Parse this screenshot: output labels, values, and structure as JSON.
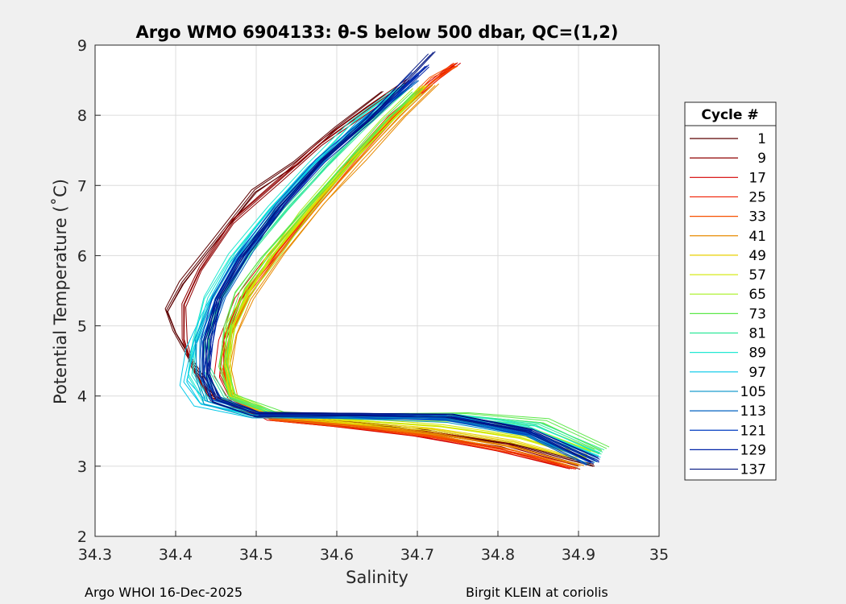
{
  "chart_data": {
    "type": "line",
    "title": "Argo WMO 6904133: θ-S below 500 dbar,  QC=(1,2)",
    "xlabel": "Salinity",
    "ylabel": "Potential Temperature (˚C)",
    "xlim": [
      34.3,
      35.0
    ],
    "ylim": [
      2,
      9
    ],
    "xticks": [
      "34.3",
      "34.4",
      "34.5",
      "34.6",
      "34.7",
      "34.8",
      "34.9",
      "35"
    ],
    "yticks": [
      "2",
      "3",
      "4",
      "5",
      "6",
      "7",
      "8",
      "9"
    ],
    "grid": true,
    "legend": {
      "title": "Cycle #",
      "position": "right",
      "entries": [
        {
          "label": "1",
          "color": "#5c0000"
        },
        {
          "label": "9",
          "color": "#8f0000"
        },
        {
          "label": "17",
          "color": "#d40000"
        },
        {
          "label": "25",
          "color": "#f01e00"
        },
        {
          "label": "33",
          "color": "#f75000"
        },
        {
          "label": "41",
          "color": "#e88a00"
        },
        {
          "label": "49",
          "color": "#e8d000"
        },
        {
          "label": "57",
          "color": "#d2e800"
        },
        {
          "label": "65",
          "color": "#a8f020"
        },
        {
          "label": "73",
          "color": "#5de84a"
        },
        {
          "label": "81",
          "color": "#2ee89a"
        },
        {
          "label": "89",
          "color": "#22e8d2"
        },
        {
          "label": "97",
          "color": "#00c8e8"
        },
        {
          "label": "105",
          "color": "#0091c8"
        },
        {
          "label": "113",
          "color": "#0060c0"
        },
        {
          "label": "121",
          "color": "#003cc0"
        },
        {
          "label": "129",
          "color": "#0022a8"
        },
        {
          "label": "137",
          "color": "#001480"
        }
      ]
    },
    "series": [
      {
        "name": "1",
        "color": "#5c0000",
        "points": [
          [
            34.92,
            3.0
          ],
          [
            34.82,
            3.3
          ],
          [
            34.7,
            3.5
          ],
          [
            34.6,
            3.62
          ],
          [
            34.5,
            3.72
          ],
          [
            34.45,
            3.95
          ],
          [
            34.42,
            4.5
          ],
          [
            34.4,
            4.9
          ],
          [
            34.39,
            5.2
          ],
          [
            34.41,
            5.6
          ],
          [
            34.45,
            6.2
          ],
          [
            34.5,
            6.9
          ],
          [
            34.55,
            7.3
          ],
          [
            34.6,
            7.8
          ],
          [
            34.66,
            8.3
          ]
        ]
      },
      {
        "name": "9",
        "color": "#8f0000",
        "points": [
          [
            34.9,
            3.0
          ],
          [
            34.8,
            3.32
          ],
          [
            34.68,
            3.52
          ],
          [
            34.58,
            3.63
          ],
          [
            34.5,
            3.72
          ],
          [
            34.44,
            4.0
          ],
          [
            34.42,
            4.4
          ],
          [
            34.41,
            4.8
          ],
          [
            34.41,
            5.3
          ],
          [
            34.43,
            5.8
          ],
          [
            34.47,
            6.5
          ],
          [
            34.53,
            7.1
          ],
          [
            34.58,
            7.6
          ],
          [
            34.64,
            8.1
          ],
          [
            34.69,
            8.5
          ]
        ]
      },
      {
        "name": "17",
        "color": "#d40000",
        "points": [
          [
            34.89,
            2.98
          ],
          [
            34.8,
            3.25
          ],
          [
            34.7,
            3.45
          ],
          [
            34.6,
            3.58
          ],
          [
            34.52,
            3.68
          ],
          [
            34.47,
            3.95
          ],
          [
            34.455,
            4.3
          ],
          [
            34.46,
            4.8
          ],
          [
            34.48,
            5.4
          ],
          [
            34.52,
            6.0
          ],
          [
            34.57,
            6.7
          ],
          [
            34.62,
            7.4
          ],
          [
            34.67,
            8.0
          ],
          [
            34.72,
            8.5
          ],
          [
            34.75,
            8.75
          ]
        ]
      },
      {
        "name": "25",
        "color": "#f01e00",
        "points": [
          [
            34.895,
            2.98
          ],
          [
            34.82,
            3.22
          ],
          [
            34.72,
            3.44
          ],
          [
            34.62,
            3.58
          ],
          [
            34.52,
            3.68
          ],
          [
            34.47,
            3.95
          ],
          [
            34.46,
            4.35
          ],
          [
            34.46,
            4.85
          ],
          [
            34.48,
            5.4
          ],
          [
            34.52,
            6.0
          ],
          [
            34.57,
            6.7
          ],
          [
            34.62,
            7.4
          ],
          [
            34.67,
            8.0
          ],
          [
            34.72,
            8.5
          ],
          [
            34.745,
            8.72
          ]
        ]
      },
      {
        "name": "33",
        "color": "#f75000",
        "points": [
          [
            34.89,
            3.0
          ],
          [
            34.82,
            3.2
          ],
          [
            34.72,
            3.42
          ],
          [
            34.62,
            3.57
          ],
          [
            34.52,
            3.68
          ],
          [
            34.47,
            3.96
          ],
          [
            34.46,
            4.4
          ],
          [
            34.47,
            4.9
          ],
          [
            34.49,
            5.45
          ],
          [
            34.53,
            6.05
          ],
          [
            34.58,
            6.75
          ],
          [
            34.63,
            7.45
          ],
          [
            34.68,
            8.05
          ],
          [
            34.72,
            8.5
          ],
          [
            34.75,
            8.7
          ]
        ]
      },
      {
        "name": "41",
        "color": "#e88a00",
        "points": [
          [
            34.9,
            3.02
          ],
          [
            34.82,
            3.28
          ],
          [
            34.72,
            3.48
          ],
          [
            34.62,
            3.6
          ],
          [
            34.52,
            3.7
          ],
          [
            34.47,
            3.98
          ],
          [
            34.465,
            4.4
          ],
          [
            34.47,
            4.9
          ],
          [
            34.49,
            5.4
          ],
          [
            34.53,
            6.05
          ],
          [
            34.58,
            6.75
          ],
          [
            34.63,
            7.4
          ],
          [
            34.68,
            8.0
          ],
          [
            34.72,
            8.45
          ]
        ]
      },
      {
        "name": "49",
        "color": "#e8d000",
        "points": [
          [
            34.9,
            3.1
          ],
          [
            34.82,
            3.35
          ],
          [
            34.72,
            3.52
          ],
          [
            34.62,
            3.62
          ],
          [
            34.52,
            3.72
          ],
          [
            34.47,
            3.98
          ],
          [
            34.465,
            4.4
          ],
          [
            34.47,
            4.95
          ],
          [
            34.49,
            5.45
          ],
          [
            34.52,
            6.0
          ],
          [
            34.57,
            6.7
          ],
          [
            34.62,
            7.35
          ],
          [
            34.67,
            7.95
          ],
          [
            34.71,
            8.4
          ]
        ]
      },
      {
        "name": "57",
        "color": "#d2e800",
        "points": [
          [
            34.91,
            3.12
          ],
          [
            34.83,
            3.4
          ],
          [
            34.73,
            3.56
          ],
          [
            34.62,
            3.65
          ],
          [
            34.52,
            3.73
          ],
          [
            34.47,
            4.0
          ],
          [
            34.465,
            4.45
          ],
          [
            34.47,
            5.0
          ],
          [
            34.49,
            5.5
          ],
          [
            34.52,
            6.0
          ],
          [
            34.57,
            6.7
          ],
          [
            34.62,
            7.35
          ],
          [
            34.67,
            7.95
          ],
          [
            34.71,
            8.4
          ]
        ]
      },
      {
        "name": "65",
        "color": "#a8f020",
        "points": [
          [
            34.92,
            3.2
          ],
          [
            34.84,
            3.55
          ],
          [
            34.74,
            3.66
          ],
          [
            34.62,
            3.7
          ],
          [
            34.52,
            3.75
          ],
          [
            34.47,
            4.0
          ],
          [
            34.46,
            4.45
          ],
          [
            34.47,
            5.0
          ],
          [
            34.49,
            5.5
          ],
          [
            34.52,
            6.0
          ],
          [
            34.56,
            6.6
          ],
          [
            34.61,
            7.3
          ],
          [
            34.66,
            7.9
          ],
          [
            34.7,
            8.35
          ]
        ]
      },
      {
        "name": "73",
        "color": "#5de84a",
        "points": [
          [
            34.935,
            3.25
          ],
          [
            34.86,
            3.65
          ],
          [
            34.76,
            3.75
          ],
          [
            34.64,
            3.73
          ],
          [
            34.53,
            3.75
          ],
          [
            34.47,
            4.0
          ],
          [
            34.46,
            4.45
          ],
          [
            34.465,
            5.0
          ],
          [
            34.48,
            5.5
          ],
          [
            34.51,
            6.0
          ],
          [
            34.56,
            6.65
          ],
          [
            34.61,
            7.3
          ],
          [
            34.66,
            7.9
          ],
          [
            34.7,
            8.35
          ]
        ]
      },
      {
        "name": "81",
        "color": "#2ee89a",
        "points": [
          [
            34.93,
            3.2
          ],
          [
            34.85,
            3.6
          ],
          [
            34.75,
            3.72
          ],
          [
            34.63,
            3.72
          ],
          [
            34.52,
            3.75
          ],
          [
            34.46,
            3.98
          ],
          [
            34.44,
            4.4
          ],
          [
            34.44,
            4.9
          ],
          [
            34.46,
            5.45
          ],
          [
            34.49,
            6.0
          ],
          [
            34.54,
            6.7
          ],
          [
            34.59,
            7.3
          ],
          [
            34.64,
            7.9
          ],
          [
            34.69,
            8.4
          ]
        ]
      },
      {
        "name": "89",
        "color": "#22e8d2",
        "points": [
          [
            34.925,
            3.15
          ],
          [
            34.84,
            3.55
          ],
          [
            34.74,
            3.72
          ],
          [
            34.62,
            3.72
          ],
          [
            34.5,
            3.72
          ],
          [
            34.44,
            3.92
          ],
          [
            34.42,
            4.3
          ],
          [
            34.425,
            4.8
          ],
          [
            34.44,
            5.4
          ],
          [
            34.47,
            6.0
          ],
          [
            34.52,
            6.7
          ],
          [
            34.57,
            7.3
          ],
          [
            34.62,
            7.9
          ],
          [
            34.68,
            8.4
          ]
        ]
      },
      {
        "name": "97",
        "color": "#00c8e8",
        "points": [
          [
            34.92,
            3.1
          ],
          [
            34.84,
            3.5
          ],
          [
            34.74,
            3.7
          ],
          [
            34.62,
            3.72
          ],
          [
            34.5,
            3.72
          ],
          [
            34.43,
            3.9
          ],
          [
            34.41,
            4.2
          ],
          [
            34.42,
            4.7
          ],
          [
            34.44,
            5.3
          ],
          [
            34.47,
            5.9
          ],
          [
            34.52,
            6.65
          ],
          [
            34.57,
            7.3
          ],
          [
            34.63,
            7.9
          ],
          [
            34.68,
            8.4
          ]
        ]
      },
      {
        "name": "105",
        "color": "#0091c8",
        "points": [
          [
            34.92,
            3.05
          ],
          [
            34.84,
            3.45
          ],
          [
            34.74,
            3.66
          ],
          [
            34.62,
            3.7
          ],
          [
            34.5,
            3.72
          ],
          [
            34.44,
            3.92
          ],
          [
            34.43,
            4.3
          ],
          [
            34.43,
            4.8
          ],
          [
            34.45,
            5.4
          ],
          [
            34.48,
            6.0
          ],
          [
            34.53,
            6.7
          ],
          [
            34.58,
            7.3
          ],
          [
            34.63,
            7.9
          ],
          [
            34.69,
            8.4
          ]
        ]
      },
      {
        "name": "113",
        "color": "#0060c0",
        "points": [
          [
            34.915,
            3.05
          ],
          [
            34.84,
            3.45
          ],
          [
            34.74,
            3.68
          ],
          [
            34.62,
            3.72
          ],
          [
            34.5,
            3.74
          ],
          [
            34.45,
            3.95
          ],
          [
            34.435,
            4.3
          ],
          [
            34.44,
            4.8
          ],
          [
            34.46,
            5.4
          ],
          [
            34.49,
            6.0
          ],
          [
            34.53,
            6.7
          ],
          [
            34.58,
            7.35
          ],
          [
            34.64,
            7.95
          ],
          [
            34.7,
            8.5
          ]
        ]
      },
      {
        "name": "121",
        "color": "#003cc0",
        "points": [
          [
            34.915,
            3.05
          ],
          [
            34.84,
            3.48
          ],
          [
            34.74,
            3.7
          ],
          [
            34.62,
            3.73
          ],
          [
            34.5,
            3.74
          ],
          [
            34.45,
            3.95
          ],
          [
            34.435,
            4.3
          ],
          [
            34.435,
            4.8
          ],
          [
            34.45,
            5.4
          ],
          [
            34.48,
            6.0
          ],
          [
            34.53,
            6.7
          ],
          [
            34.58,
            7.35
          ],
          [
            34.64,
            7.95
          ],
          [
            34.7,
            8.6
          ]
        ]
      },
      {
        "name": "129",
        "color": "#0022a8",
        "points": [
          [
            34.92,
            3.08
          ],
          [
            34.84,
            3.5
          ],
          [
            34.74,
            3.72
          ],
          [
            34.62,
            3.74
          ],
          [
            34.5,
            3.74
          ],
          [
            34.45,
            3.95
          ],
          [
            34.435,
            4.3
          ],
          [
            34.44,
            4.8
          ],
          [
            34.45,
            5.4
          ],
          [
            34.48,
            6.0
          ],
          [
            34.53,
            6.7
          ],
          [
            34.58,
            7.35
          ],
          [
            34.64,
            7.95
          ],
          [
            34.71,
            8.7
          ]
        ]
      },
      {
        "name": "137",
        "color": "#001480",
        "points": [
          [
            34.92,
            3.1
          ],
          [
            34.84,
            3.52
          ],
          [
            34.74,
            3.74
          ],
          [
            34.62,
            3.75
          ],
          [
            34.5,
            3.75
          ],
          [
            34.45,
            3.95
          ],
          [
            34.44,
            4.3
          ],
          [
            34.44,
            4.8
          ],
          [
            34.455,
            5.4
          ],
          [
            34.485,
            6.0
          ],
          [
            34.53,
            6.7
          ],
          [
            34.58,
            7.35
          ],
          [
            34.64,
            7.95
          ],
          [
            34.72,
            8.9
          ]
        ]
      }
    ]
  },
  "footer": {
    "left": "Argo WHOI 16-Dec-2025",
    "right": "Birgit KLEIN at coriolis"
  }
}
